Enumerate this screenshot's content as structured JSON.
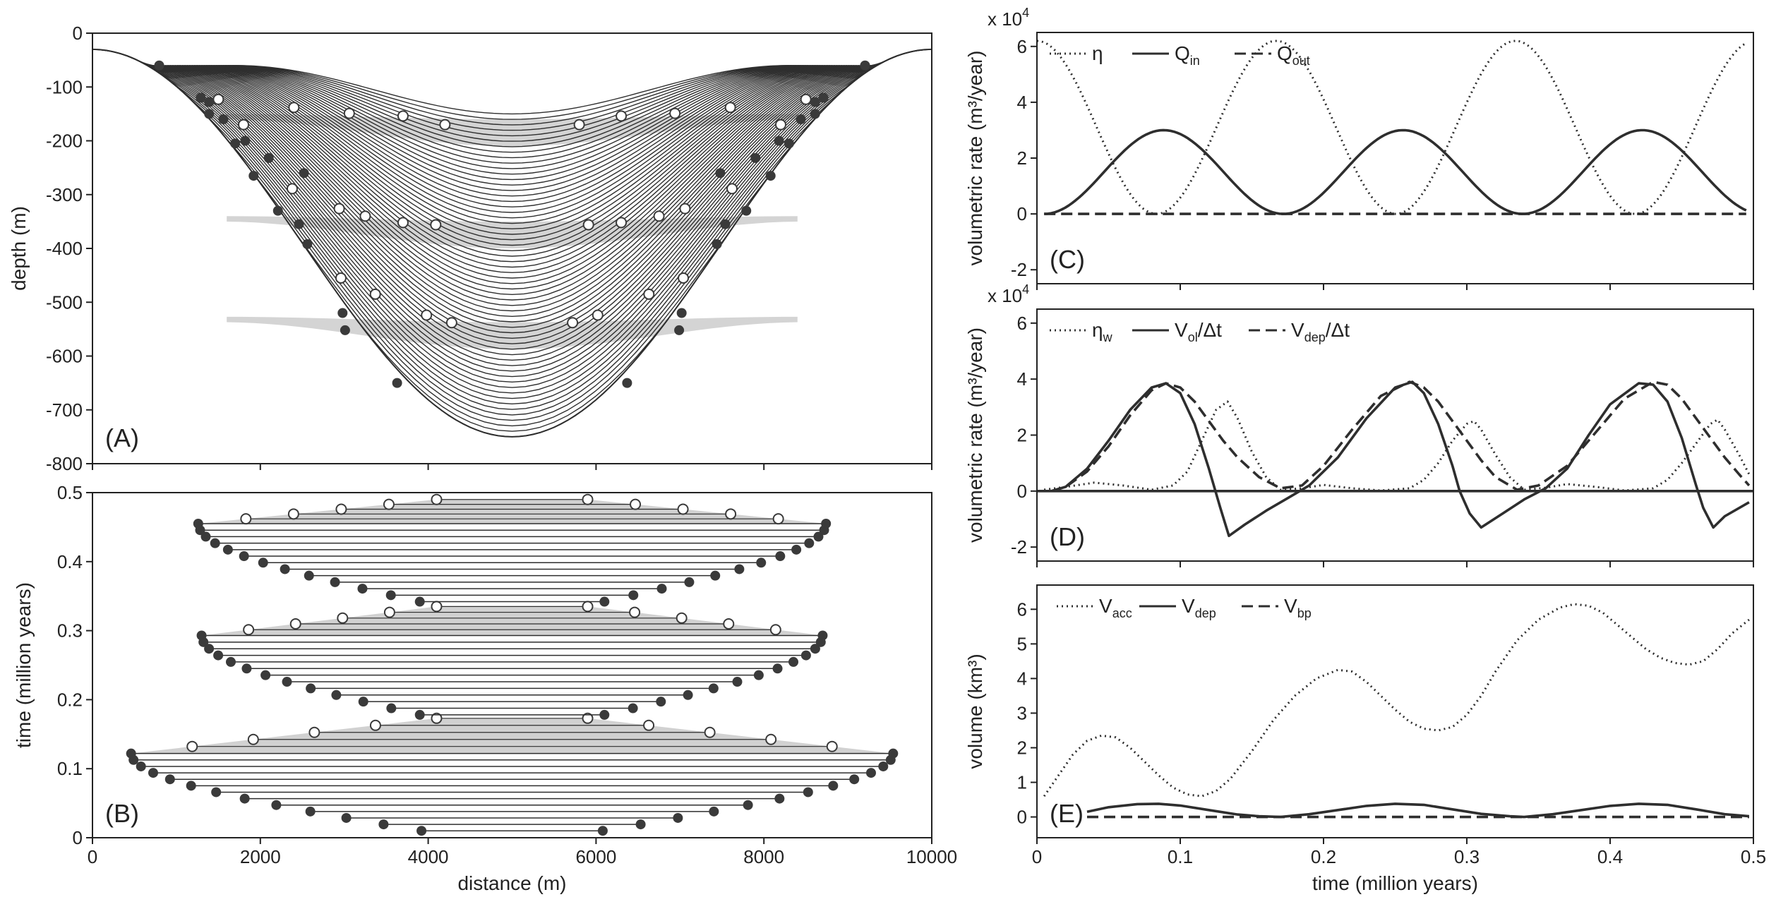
{
  "colors": {
    "fill": "#c6c6c6",
    "solid": "#3a3a3a",
    "open_dot": "#ffffff",
    "line": "#2e2e2e"
  },
  "chart_data": [
    {
      "id": "A",
      "type": "line",
      "panel_label": "(A)",
      "xlabel": "",
      "ylabel": "depth (m)",
      "xlim": [
        0,
        10000
      ],
      "ylim": [
        -800,
        0
      ],
      "xticks": [
        0,
        2000,
        4000,
        6000,
        8000,
        10000
      ],
      "xticklabels": [
        "",
        "",
        "",
        "",
        "",
        ""
      ],
      "yticks": [
        0,
        -100,
        -200,
        -300,
        -400,
        -500,
        -600,
        -700,
        -800
      ],
      "yticklabels": [
        "0",
        "-100",
        "-200",
        "-300",
        "-400",
        "-500",
        "-600",
        "-700",
        "-800"
      ],
      "topography": {
        "x_min": 0,
        "x_max": 10000,
        "center": 5000,
        "edge_depth": -30,
        "center_depth": -750
      },
      "num_surfaces": 60,
      "lake_levels": [
        -155,
        -345,
        -532
      ],
      "cycles": [
        {
          "level": -155,
          "dry": [
            [
              795,
              -60
            ],
            [
              1290,
              -120
            ],
            [
              1390,
              -150
            ],
            [
              1560,
              -160
            ],
            [
              1820,
              -200
            ],
            [
              2100,
              -232
            ],
            [
              2520,
              -260
            ]
          ],
          "wet": [
            [
              1500,
              -123
            ],
            [
              1800,
              -170
            ],
            [
              2400,
              -138
            ],
            [
              3060,
              -149
            ],
            [
              3700,
              -154
            ],
            [
              4200,
              -170
            ]
          ]
        },
        {
          "level": -345,
          "dry": [
            [
              1390,
              -128
            ],
            [
              1700,
              -205
            ],
            [
              1920,
              -265
            ],
            [
              2460,
              -355
            ],
            [
              2560,
              -392
            ],
            [
              2980,
              -520
            ]
          ],
          "wet": [
            [
              2380,
              -289
            ],
            [
              2940,
              -326
            ],
            [
              3250,
              -340
            ],
            [
              3700,
              -352
            ],
            [
              4090,
              -356
            ]
          ]
        },
        {
          "level": -532,
          "dry": [
            [
              2210,
              -330
            ],
            [
              3010,
              -552
            ],
            [
              3630,
              -650
            ]
          ],
          "wet": [
            [
              2960,
              -455
            ],
            [
              3370,
              -485
            ],
            [
              3980,
              -524
            ],
            [
              4280,
              -538
            ]
          ]
        }
      ],
      "x_dots_mirror": true
    },
    {
      "id": "B",
      "type": "line",
      "panel_label": "(B)",
      "xlabel": "distance (m)",
      "ylabel": "time (million years)",
      "xlim": [
        0,
        10000
      ],
      "ylim": [
        0,
        0.5
      ],
      "xticks": [
        0,
        2000,
        4000,
        6000,
        8000,
        10000
      ],
      "xticklabels": [
        "0",
        "2000",
        "4000",
        "6000",
        "8000",
        "10000"
      ],
      "yticks": [
        0,
        0.1,
        0.2,
        0.3,
        0.4,
        0.5
      ],
      "yticklabels": [
        "0",
        "0.1",
        "0.2",
        "0.3",
        "0.4",
        "0.5"
      ],
      "cycles": [
        {
          "t_start": 0.01,
          "t_end": 0.122,
          "half_width_start": 1080,
          "half_width_max": 4540,
          "wet_peak": 0.173
        },
        {
          "t_start": 0.178,
          "t_end": 0.293,
          "half_width_start": 1100,
          "half_width_max": 3700,
          "wet_peak": 0.335
        },
        {
          "t_start": 0.342,
          "t_end": 0.455,
          "half_width_start": 1100,
          "half_width_max": 3740,
          "wet_peak": 0.49
        }
      ]
    },
    {
      "id": "C",
      "type": "line",
      "panel_label": "(C)",
      "xlabel": "",
      "ylabel": "volumetric rate (m³/year)",
      "scale_note": "x 10",
      "scale_exp": "4",
      "xlim": [
        0,
        0.5
      ],
      "ylim": [
        -2.5,
        6.5
      ],
      "yticks": [
        -2,
        0,
        2,
        4,
        6
      ],
      "yticklabels": [
        "-2",
        "0",
        "2",
        "4",
        "6"
      ],
      "legend": [
        "η",
        "Q",
        "Q"
      ],
      "legend_sub": [
        "",
        "in",
        "out"
      ],
      "series": [
        {
          "name": "η",
          "style": "dotted",
          "formula": "3.1*(1+cos(2*pi*t/0.167))",
          "x_range": [
            0,
            0.495
          ]
        },
        {
          "name": "Qin",
          "style": "solid",
          "formula": "1.5*(1-cos(2*pi*(t-0.005)/0.167))",
          "x_range": [
            0.005,
            0.495
          ]
        },
        {
          "name": "Qout",
          "style": "dashed",
          "formula": "0",
          "x_range": [
            0.005,
            0.495
          ]
        }
      ]
    },
    {
      "id": "D",
      "type": "line",
      "panel_label": "(D)",
      "xlabel": "",
      "ylabel": "volumetric rate (m³/year)",
      "scale_note": "x 10",
      "scale_exp": "4",
      "xlim": [
        0,
        0.5
      ],
      "ylim": [
        -2.5,
        6.5
      ],
      "yticks": [
        -2,
        0,
        2,
        4,
        6
      ],
      "yticklabels": [
        "-2",
        "0",
        "2",
        "4",
        "6"
      ],
      "legend": [
        "η",
        "V",
        "V"
      ],
      "legend_sub": [
        "w",
        "ol",
        "dep"
      ],
      "legend_tail": [
        "",
        "/Δt",
        "/Δt"
      ],
      "series": [
        {
          "name": "ηw",
          "style": "dotted",
          "x": [
            0.005,
            0.02,
            0.04,
            0.06,
            0.08,
            0.095,
            0.105,
            0.115,
            0.125,
            0.133,
            0.14,
            0.15,
            0.16,
            0.17,
            0.185,
            0.2,
            0.22,
            0.24,
            0.26,
            0.27,
            0.28,
            0.29,
            0.3,
            0.305,
            0.31,
            0.32,
            0.33,
            0.34,
            0.355,
            0.37,
            0.39,
            0.41,
            0.43,
            0.44,
            0.45,
            0.46,
            0.47,
            0.475,
            0.48,
            0.49,
            0.497
          ],
          "y": [
            0.05,
            0.15,
            0.3,
            0.2,
            0.05,
            0.2,
            0.7,
            1.8,
            2.9,
            3.2,
            2.6,
            1.4,
            0.5,
            0.05,
            0.1,
            0.22,
            0.1,
            0.02,
            0.1,
            0.4,
            1.0,
            1.8,
            2.4,
            2.5,
            2.2,
            1.3,
            0.5,
            0.05,
            0.12,
            0.25,
            0.15,
            0.02,
            0.1,
            0.4,
            1.0,
            1.7,
            2.4,
            2.55,
            2.2,
            1.3,
            0.6
          ]
        },
        {
          "name": "Vol/Δt",
          "style": "solid",
          "x": [
            0.01,
            0.02,
            0.035,
            0.05,
            0.065,
            0.08,
            0.09,
            0.1,
            0.11,
            0.12,
            0.128,
            0.134,
            0.145,
            0.16,
            0.175,
            0.19,
            0.21,
            0.23,
            0.25,
            0.262,
            0.27,
            0.28,
            0.29,
            0.295,
            0.302,
            0.31,
            0.325,
            0.34,
            0.355,
            0.37,
            0.385,
            0.4,
            0.42,
            0.43,
            0.44,
            0.45,
            0.46,
            0.465,
            0.472,
            0.48,
            0.497
          ],
          "y": [
            0,
            0.15,
            0.8,
            1.8,
            2.9,
            3.7,
            3.85,
            3.5,
            2.4,
            0.8,
            -0.6,
            -1.6,
            -1.2,
            -0.7,
            -0.25,
            0.2,
            1.2,
            2.6,
            3.7,
            3.9,
            3.5,
            2.4,
            0.9,
            0,
            -0.8,
            -1.3,
            -0.8,
            -0.3,
            0.1,
            0.8,
            2.0,
            3.1,
            3.85,
            3.8,
            3.2,
            1.9,
            0.2,
            -0.6,
            -1.3,
            -0.9,
            -0.4
          ]
        },
        {
          "name": "Vdep/Δt",
          "style": "dashed",
          "x": [
            0.01,
            0.02,
            0.035,
            0.05,
            0.065,
            0.08,
            0.09,
            0.1,
            0.11,
            0.12,
            0.13,
            0.14,
            0.155,
            0.17,
            0.185,
            0.2,
            0.22,
            0.24,
            0.26,
            0.27,
            0.28,
            0.29,
            0.3,
            0.31,
            0.32,
            0.335,
            0.35,
            0.37,
            0.39,
            0.41,
            0.43,
            0.44,
            0.45,
            0.46,
            0.47,
            0.48,
            0.49,
            0.497
          ],
          "y": [
            0,
            0.15,
            0.7,
            1.6,
            2.7,
            3.6,
            3.85,
            3.7,
            3.2,
            2.5,
            1.8,
            1.2,
            0.5,
            0.1,
            0.2,
            0.9,
            2.2,
            3.4,
            3.9,
            3.7,
            3.2,
            2.5,
            1.8,
            1.1,
            0.5,
            0.05,
            0.2,
            0.9,
            2.1,
            3.3,
            3.9,
            3.8,
            3.3,
            2.6,
            1.9,
            1.2,
            0.6,
            0.2
          ]
        },
        {
          "name": "zero",
          "style": "solid",
          "x": [
            0,
            0.5
          ],
          "y": [
            0,
            0
          ]
        }
      ]
    },
    {
      "id": "E",
      "type": "line",
      "panel_label": "(E)",
      "xlabel": "time (million years)",
      "ylabel": "volume (km³)",
      "xlim": [
        0,
        0.5
      ],
      "ylim": [
        -0.6,
        6.7
      ],
      "xticks": [
        0,
        0.1,
        0.2,
        0.3,
        0.4,
        0.5
      ],
      "xticklabels": [
        "0",
        "0.1",
        "0.2",
        "0.3",
        "0.4",
        "0.5"
      ],
      "yticks": [
        0,
        1,
        2,
        3,
        4,
        5,
        6
      ],
      "yticklabels": [
        "0",
        "1",
        "2",
        "3",
        "4",
        "5",
        "6"
      ],
      "legend": [
        "V",
        "V",
        "V"
      ],
      "legend_sub": [
        "acc",
        "dep",
        "bp"
      ],
      "series": [
        {
          "name": "Vacc",
          "style": "dotted",
          "x": [
            0.005,
            0.015,
            0.025,
            0.035,
            0.045,
            0.055,
            0.065,
            0.075,
            0.085,
            0.095,
            0.105,
            0.115,
            0.125,
            0.135,
            0.15,
            0.165,
            0.18,
            0.195,
            0.21,
            0.22,
            0.23,
            0.24,
            0.25,
            0.26,
            0.27,
            0.28,
            0.29,
            0.3,
            0.31,
            0.32,
            0.335,
            0.35,
            0.365,
            0.375,
            0.385,
            0.395,
            0.405,
            0.415,
            0.425,
            0.435,
            0.445,
            0.455,
            0.465,
            0.475,
            0.485,
            0.497
          ],
          "y": [
            0.6,
            1.2,
            1.8,
            2.2,
            2.35,
            2.3,
            2.0,
            1.6,
            1.2,
            0.85,
            0.65,
            0.6,
            0.75,
            1.1,
            1.9,
            2.8,
            3.5,
            4.0,
            4.25,
            4.2,
            3.9,
            3.5,
            3.1,
            2.75,
            2.55,
            2.5,
            2.6,
            2.95,
            3.5,
            4.2,
            5.1,
            5.7,
            6.05,
            6.15,
            6.1,
            5.9,
            5.55,
            5.2,
            4.85,
            4.6,
            4.45,
            4.4,
            4.5,
            4.85,
            5.3,
            5.7
          ]
        },
        {
          "name": "Vdep",
          "style": "solid",
          "x": [
            0.035,
            0.05,
            0.07,
            0.085,
            0.1,
            0.12,
            0.14,
            0.155,
            0.17,
            0.19,
            0.21,
            0.23,
            0.25,
            0.27,
            0.29,
            0.31,
            0.33,
            0.34,
            0.36,
            0.38,
            0.4,
            0.42,
            0.44,
            0.46,
            0.48,
            0.497
          ],
          "y": [
            0.15,
            0.28,
            0.37,
            0.38,
            0.33,
            0.2,
            0.07,
            0.02,
            0.0,
            0.08,
            0.2,
            0.32,
            0.38,
            0.35,
            0.22,
            0.09,
            0.02,
            0.0,
            0.08,
            0.2,
            0.32,
            0.38,
            0.35,
            0.22,
            0.08,
            0.02
          ]
        },
        {
          "name": "Vbp",
          "style": "dashed",
          "x": [
            0.035,
            0.497
          ],
          "y": [
            0,
            0
          ]
        }
      ]
    }
  ]
}
